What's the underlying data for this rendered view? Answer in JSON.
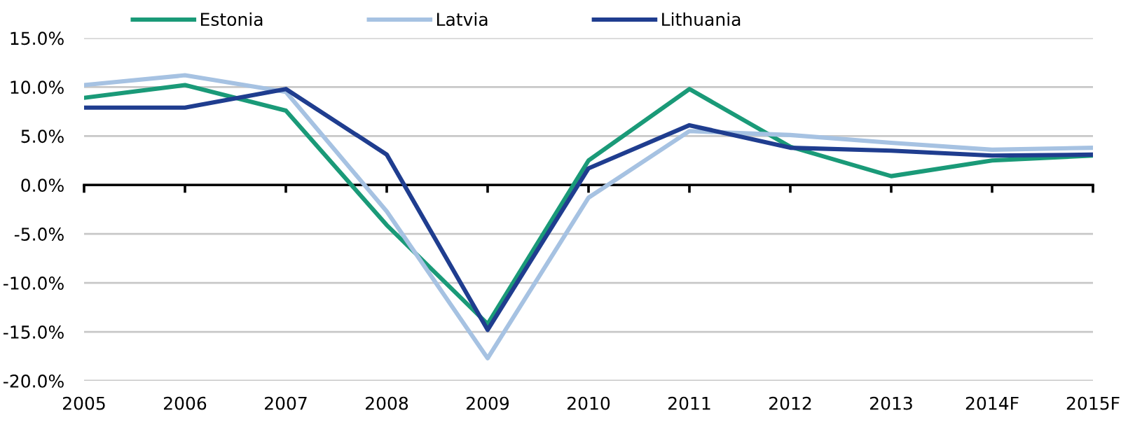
{
  "chart_data": {
    "type": "line",
    "categories": [
      "2005",
      "2006",
      "2007",
      "2008",
      "2009",
      "2010",
      "2011",
      "2012",
      "2013",
      "2014F",
      "2015F"
    ],
    "series": [
      {
        "name": "Estonia",
        "color": "#1a9a78",
        "values": [
          8.9,
          10.2,
          7.6,
          -4.1,
          -14.2,
          2.5,
          9.8,
          3.9,
          0.9,
          2.5,
          3.0
        ]
      },
      {
        "name": "Latvia",
        "color": "#a6c2e2",
        "values": [
          10.2,
          11.2,
          9.5,
          -2.7,
          -17.7,
          -1.3,
          5.5,
          5.1,
          4.3,
          3.6,
          3.8
        ]
      },
      {
        "name": "Lithuania",
        "color": "#1f3d8f",
        "values": [
          7.9,
          7.9,
          9.8,
          3.1,
          -14.8,
          1.7,
          6.1,
          3.8,
          3.5,
          3.0,
          3.1
        ]
      }
    ],
    "ylim": [
      -20,
      15
    ],
    "yticks": [
      {
        "value": -20,
        "label": "-20.0%"
      },
      {
        "value": -15,
        "label": "-15.0%"
      },
      {
        "value": -10,
        "label": "-10.0%"
      },
      {
        "value": -5,
        "label": "-5.0%"
      },
      {
        "value": 0,
        "label": "0.0%"
      },
      {
        "value": 5,
        "label": "5.0%"
      },
      {
        "value": 10,
        "label": "10.0%"
      },
      {
        "value": 15,
        "label": "15.0%"
      }
    ],
    "grid": "y",
    "legend": "top",
    "marker": "none",
    "line_style": "solid"
  }
}
